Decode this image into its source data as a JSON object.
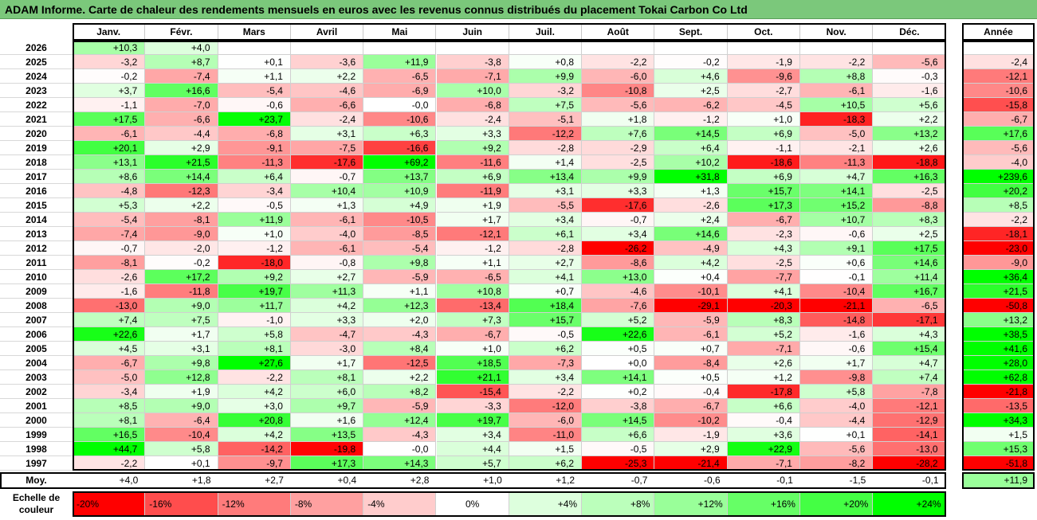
{
  "title": "ADAM Informe. Carte de chaleur des rendements mensuels en euros avec les revenus connus distribués du placement Tokai Carbon Co Ltd",
  "chart_data": {
    "type": "heatmap",
    "title": "ADAM Informe. Carte de chaleur des rendements mensuels en euros avec les revenus connus distribués du placement Tokai Carbon Co Ltd",
    "months": [
      "Janv.",
      "Févr.",
      "Mars",
      "Avril",
      "Mai",
      "Juin",
      "Juil.",
      "Août",
      "Sept.",
      "Oct.",
      "Nov.",
      "Déc."
    ],
    "annual_header": "Année",
    "rows": [
      {
        "year": "2026",
        "values": [
          "+10,3",
          "+4,0",
          "",
          "",
          "",
          "",
          "",
          "",
          "",
          "",
          "",
          ""
        ],
        "annual": ""
      },
      {
        "year": "2025",
        "values": [
          "-3,2",
          "+8,7",
          "+0,1",
          "-3,6",
          "+11,9",
          "-3,8",
          "+0,8",
          "-2,2",
          "-0,2",
          "-1,9",
          "-2,2",
          "-5,6"
        ],
        "annual": "-2,4"
      },
      {
        "year": "2024",
        "values": [
          "-0,2",
          "-7,4",
          "+1,1",
          "+2,2",
          "-6,5",
          "-7,1",
          "+9,9",
          "-6,0",
          "+4,6",
          "-9,6",
          "+8,8",
          "-0,3"
        ],
        "annual": "-12,1"
      },
      {
        "year": "2023",
        "values": [
          "+3,7",
          "+16,6",
          "-5,4",
          "-4,6",
          "-6,9",
          "+10,0",
          "-3,2",
          "-10,8",
          "+2,5",
          "-2,7",
          "-6,1",
          "-1,6"
        ],
        "annual": "-10,6"
      },
      {
        "year": "2022",
        "values": [
          "-1,1",
          "-7,0",
          "-0,6",
          "-6,6",
          "-0,0",
          "-6,8",
          "+7,5",
          "-5,6",
          "-6,2",
          "-4,5",
          "+10,5",
          "+5,6"
        ],
        "annual": "-15,8"
      },
      {
        "year": "2021",
        "values": [
          "+17,5",
          "-6,6",
          "+23,7",
          "-2,4",
          "-10,6",
          "-2,4",
          "-5,1",
          "+1,8",
          "-1,2",
          "+1,0",
          "-18,3",
          "+2,2"
        ],
        "annual": "-6,7"
      },
      {
        "year": "2020",
        "values": [
          "-6,1",
          "-4,4",
          "-6,8",
          "+3,1",
          "+6,3",
          "+3,3",
          "-12,2",
          "+7,6",
          "+14,5",
          "+6,9",
          "-5,0",
          "+13,2"
        ],
        "annual": "+17,6"
      },
      {
        "year": "2019",
        "values": [
          "+20,1",
          "+2,9",
          "-9,1",
          "-7,5",
          "-16,6",
          "+9,2",
          "-2,8",
          "-2,9",
          "+6,4",
          "-1,1",
          "-2,1",
          "+2,6"
        ],
        "annual": "-5,6"
      },
      {
        "year": "2018",
        "values": [
          "+13,1",
          "+21,5",
          "-11,3",
          "-17,6",
          "+69,2",
          "-11,6",
          "+1,4",
          "-2,5",
          "+10,2",
          "-18,6",
          "-11,3",
          "-18,8"
        ],
        "annual": "-4,0"
      },
      {
        "year": "2017",
        "values": [
          "+8,6",
          "+14,4",
          "+6,4",
          "-0,7",
          "+13,7",
          "+6,9",
          "+13,4",
          "+9,9",
          "+31,8",
          "+6,9",
          "+4,7",
          "+16,3"
        ],
        "annual": "+239,6"
      },
      {
        "year": "2016",
        "values": [
          "-4,8",
          "-12,3",
          "-3,4",
          "+10,4",
          "+10,9",
          "-11,9",
          "+3,1",
          "+3,3",
          "+1,3",
          "+15,7",
          "+14,1",
          "-2,5"
        ],
        "annual": "+20,2"
      },
      {
        "year": "2015",
        "values": [
          "+5,3",
          "+2,2",
          "-0,5",
          "+1,3",
          "+4,9",
          "+1,9",
          "-5,5",
          "-17,6",
          "-2,6",
          "+17,3",
          "+15,2",
          "-8,8"
        ],
        "annual": "+8,5"
      },
      {
        "year": "2014",
        "values": [
          "-5,4",
          "-8,1",
          "+11,9",
          "-6,1",
          "-10,5",
          "+1,7",
          "+3,4",
          "-0,7",
          "+2,4",
          "-6,7",
          "+10,7",
          "+8,3"
        ],
        "annual": "-2,2"
      },
      {
        "year": "2013",
        "values": [
          "-7,4",
          "-9,0",
          "+1,0",
          "-4,0",
          "-8,5",
          "-12,1",
          "+6,1",
          "+3,4",
          "+14,6",
          "-2,3",
          "-0,6",
          "+2,5"
        ],
        "annual": "-18,1"
      },
      {
        "year": "2012",
        "values": [
          "-0,7",
          "-2,0",
          "-1,2",
          "-6,1",
          "-5,4",
          "-1,2",
          "-2,8",
          "-26,2",
          "-4,9",
          "+4,3",
          "+9,1",
          "+17,5"
        ],
        "annual": "-23,0"
      },
      {
        "year": "2011",
        "values": [
          "-8,1",
          "-0,2",
          "-18,0",
          "-0,8",
          "+9,8",
          "+1,1",
          "+2,7",
          "-8,6",
          "+4,2",
          "-2,5",
          "+0,6",
          "+14,6"
        ],
        "annual": "-9,0"
      },
      {
        "year": "2010",
        "values": [
          "-2,6",
          "+17,2",
          "+9,2",
          "+2,7",
          "-5,9",
          "-6,5",
          "+4,1",
          "+13,0",
          "+0,4",
          "-7,7",
          "-0,1",
          "+11,4"
        ],
        "annual": "+36,4"
      },
      {
        "year": "2009",
        "values": [
          "-1,6",
          "-11,8",
          "+19,7",
          "+11,3",
          "+1,1",
          "+10,8",
          "+0,7",
          "-4,6",
          "-10,1",
          "+4,1",
          "-10,4",
          "+16,7"
        ],
        "annual": "+21,5"
      },
      {
        "year": "2008",
        "values": [
          "-13,0",
          "+9,0",
          "+11,7",
          "+4,2",
          "+12,3",
          "-13,4",
          "+18,4",
          "-7,6",
          "-29,1",
          "-20,3",
          "-21,1",
          "-6,5"
        ],
        "annual": "-50,8"
      },
      {
        "year": "2007",
        "values": [
          "+7,4",
          "+7,5",
          "-1,0",
          "+3,3",
          "+2,0",
          "+7,3",
          "+15,7",
          "+5,2",
          "-5,9",
          "+8,3",
          "-14,8",
          "-17,1"
        ],
        "annual": "+13,2"
      },
      {
        "year": "2006",
        "values": [
          "+22,6",
          "+1,7",
          "+5,8",
          "-4,7",
          "-4,3",
          "-6,7",
          "-0,5",
          "+22,6",
          "-6,1",
          "+5,2",
          "-1,6",
          "+4,3"
        ],
        "annual": "+38,5"
      },
      {
        "year": "2005",
        "values": [
          "+4,5",
          "+3,1",
          "+8,1",
          "-3,0",
          "+8,4",
          "+1,0",
          "+6,2",
          "+0,5",
          "+0,7",
          "-7,1",
          "-0,6",
          "+15,4"
        ],
        "annual": "+41,6"
      },
      {
        "year": "2004",
        "values": [
          "-6,7",
          "+9,8",
          "+27,6",
          "+1,7",
          "-12,5",
          "+18,5",
          "-7,3",
          "+0,0",
          "-8,4",
          "+2,6",
          "+1,7",
          "+4,7"
        ],
        "annual": "+28,0"
      },
      {
        "year": "2003",
        "values": [
          "-5,0",
          "+12,8",
          "-2,2",
          "+8,1",
          "+2,2",
          "+21,1",
          "+3,4",
          "+14,1",
          "+0,5",
          "+1,2",
          "-9,8",
          "+7,4"
        ],
        "annual": "+62,8"
      },
      {
        "year": "2002",
        "values": [
          "-3,4",
          "+1,9",
          "+4,2",
          "+6,0",
          "+8,2",
          "-15,4",
          "-2,2",
          "+0,2",
          "-0,4",
          "-17,8",
          "+5,8",
          "-7,8"
        ],
        "annual": "-21,8"
      },
      {
        "year": "2001",
        "values": [
          "+8,5",
          "+9,0",
          "+3,0",
          "+9,7",
          "-5,9",
          "-3,3",
          "-12,0",
          "-3,8",
          "-6,7",
          "+6,6",
          "-4,0",
          "-12,1"
        ],
        "annual": "-13,5"
      },
      {
        "year": "2000",
        "values": [
          "+8,1",
          "-6,4",
          "+20,8",
          "+1,6",
          "+12,4",
          "+19,7",
          "-6,0",
          "+14,5",
          "-10,2",
          "-0,4",
          "-4,4",
          "-12,9"
        ],
        "annual": "+34,3"
      },
      {
        "year": "1999",
        "values": [
          "+16,5",
          "-10,4",
          "+4,2",
          "+13,5",
          "-4,3",
          "+3,4",
          "-11,0",
          "+6,6",
          "-1,9",
          "+3,6",
          "+0,1",
          "-14,1"
        ],
        "annual": "+1,5"
      },
      {
        "year": "1998",
        "values": [
          "+44,7",
          "+5,8",
          "-14,2",
          "-19,8",
          "-0,0",
          "+4,4",
          "+1,5",
          "-0,5",
          "+2,9",
          "+22,9",
          "-5,6",
          "-13,0"
        ],
        "annual": "+15,3"
      },
      {
        "year": "1997",
        "values": [
          "-2,2",
          "+0,1",
          "-9,7",
          "+17,3",
          "+14,3",
          "+5,7",
          "+6,2",
          "-25,3",
          "-21,4",
          "-7,1",
          "-8,2",
          "-28,2"
        ],
        "annual": "-51,8"
      }
    ],
    "average": {
      "label": "Moy.",
      "values": [
        "+4,0",
        "+1,8",
        "+2,7",
        "+0,4",
        "+2,8",
        "+1,0",
        "+1,2",
        "-0,7",
        "-0,6",
        "-0,1",
        "-1,5",
        "-0,1"
      ],
      "annual": "+11,9"
    },
    "color_scale": {
      "label_line1": "Echelle de",
      "label_line2": "couleur",
      "steps": [
        "-20%",
        "-16%",
        "-12%",
        "-8%",
        "-4%",
        "0%",
        "+4%",
        "+8%",
        "+12%",
        "+16%",
        "+20%",
        "+24%"
      ],
      "stops": [
        {
          "value": -20,
          "color": "#ff0000"
        },
        {
          "value": -16,
          "color": "#ff4d4d"
        },
        {
          "value": -12,
          "color": "#ff7b7b"
        },
        {
          "value": -8,
          "color": "#ffa0a0"
        },
        {
          "value": -4,
          "color": "#ffcccc"
        },
        {
          "value": 0,
          "color": "#ffffff"
        },
        {
          "value": 4,
          "color": "#ddffdd"
        },
        {
          "value": 8,
          "color": "#bbffbb"
        },
        {
          "value": 12,
          "color": "#99ff99"
        },
        {
          "value": 16,
          "color": "#66ff66"
        },
        {
          "value": 20,
          "color": "#44ff44"
        },
        {
          "value": 24,
          "color": "#00ff00"
        }
      ]
    }
  }
}
